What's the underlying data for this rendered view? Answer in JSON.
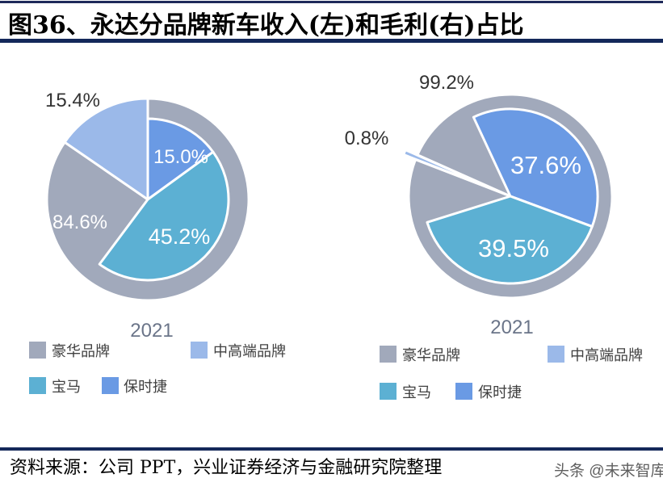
{
  "title": "图36、永达分品牌新车收入(左)和毛利(右)占比",
  "source": "资料来源：公司 PPT，兴业证券经济与金融研究院整理",
  "watermark": "头条 @未来智库",
  "colors": {
    "豪华品牌": "#a1a9bb",
    "中高端品牌": "#9bb9e9",
    "宝马": "#5cb0d3",
    "保时捷": "#6a9ae4"
  },
  "chart_data": [
    {
      "type": "pie",
      "title": "",
      "subtitle": "新车收入",
      "year_label": "2021",
      "outer": [
        {
          "name": "豪华品牌",
          "value": 84.6,
          "label": "84.6%"
        },
        {
          "name": "中高端品牌",
          "value": 15.4,
          "label": "15.4%"
        }
      ],
      "inner_of_luxury": [
        {
          "name": "保时捷",
          "value": 15.0,
          "label": "15.0%"
        },
        {
          "name": "宝马",
          "value": 45.2,
          "label": "45.2%"
        }
      ],
      "legend": [
        "豪华品牌",
        "中高端品牌",
        "宝马",
        "保时捷"
      ],
      "legend_position": "bottom"
    },
    {
      "type": "pie",
      "title": "",
      "subtitle": "毛利",
      "year_label": "2021",
      "outer": [
        {
          "name": "豪华品牌",
          "value": 99.2,
          "label": "99.2%"
        },
        {
          "name": "中高端品牌",
          "value": 0.8,
          "label": "0.8%"
        }
      ],
      "inner_of_luxury": [
        {
          "name": "保时捷",
          "value": 37.6,
          "label": "37.6%"
        },
        {
          "name": "宝马",
          "value": 39.5,
          "label": "39.5%"
        }
      ],
      "legend": [
        "豪华品牌",
        "中高端品牌",
        "宝马",
        "保时捷"
      ],
      "legend_position": "bottom"
    }
  ]
}
